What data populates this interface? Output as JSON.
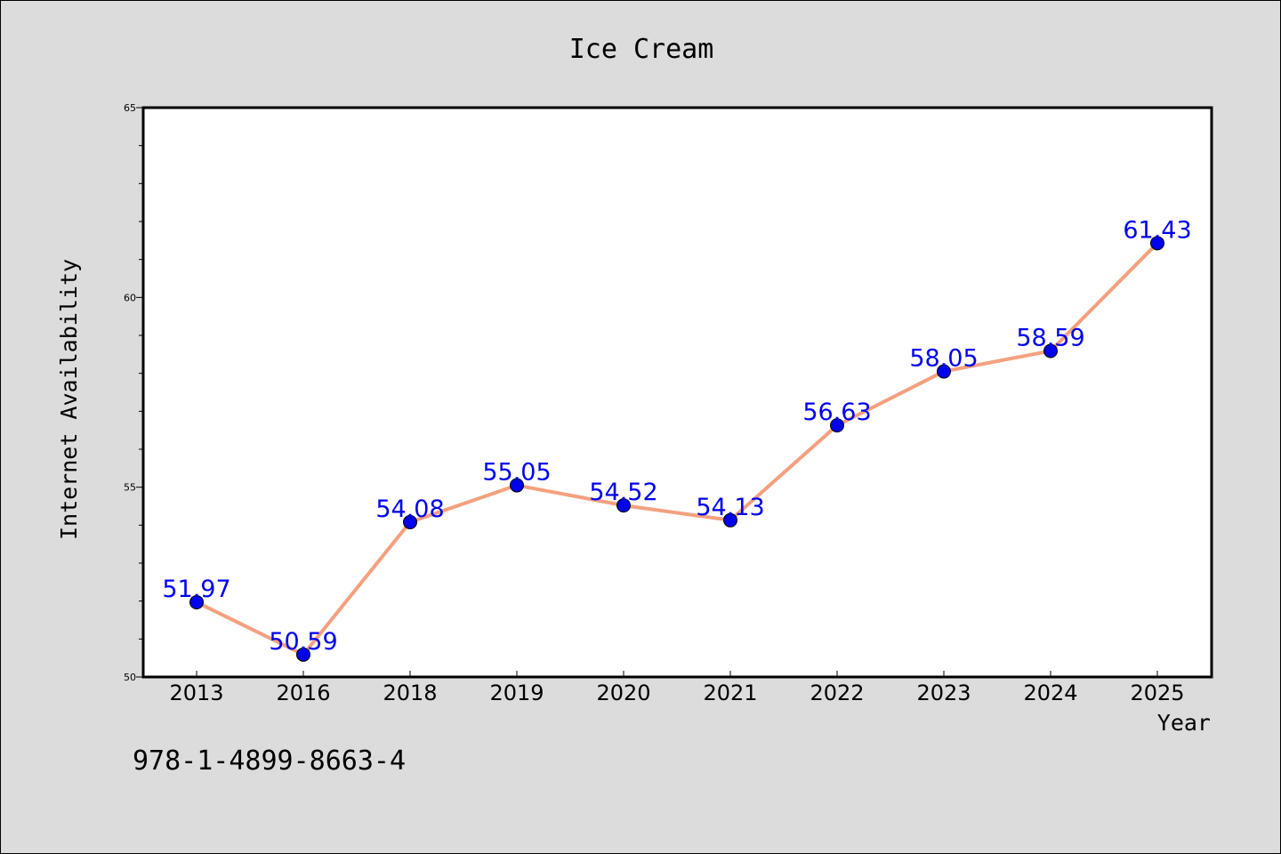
{
  "chart_data": {
    "type": "line",
    "title": "Ice Cream",
    "xlabel": "Year",
    "ylabel": "Internet Availability",
    "categories": [
      "2013",
      "2016",
      "2018",
      "2019",
      "2020",
      "2021",
      "2022",
      "2023",
      "2024",
      "2025"
    ],
    "values": [
      51.97,
      50.59,
      54.08,
      55.05,
      54.52,
      54.13,
      56.63,
      58.05,
      58.59,
      61.43
    ],
    "data_labels": [
      "51.97",
      "50.59",
      "54.08",
      "55.05",
      "54.52",
      "54.13",
      "56.63",
      "58.05",
      "58.59",
      "61.43"
    ],
    "ylim": [
      50,
      65
    ],
    "yticks": [
      "50",
      "55",
      "60",
      "65"
    ],
    "grid": false,
    "legend": "none",
    "line_color": "#f4a07e",
    "marker_color": "#0000ee",
    "label_color": "#0000ee"
  },
  "annotation": "978-1-4899-8663-4"
}
